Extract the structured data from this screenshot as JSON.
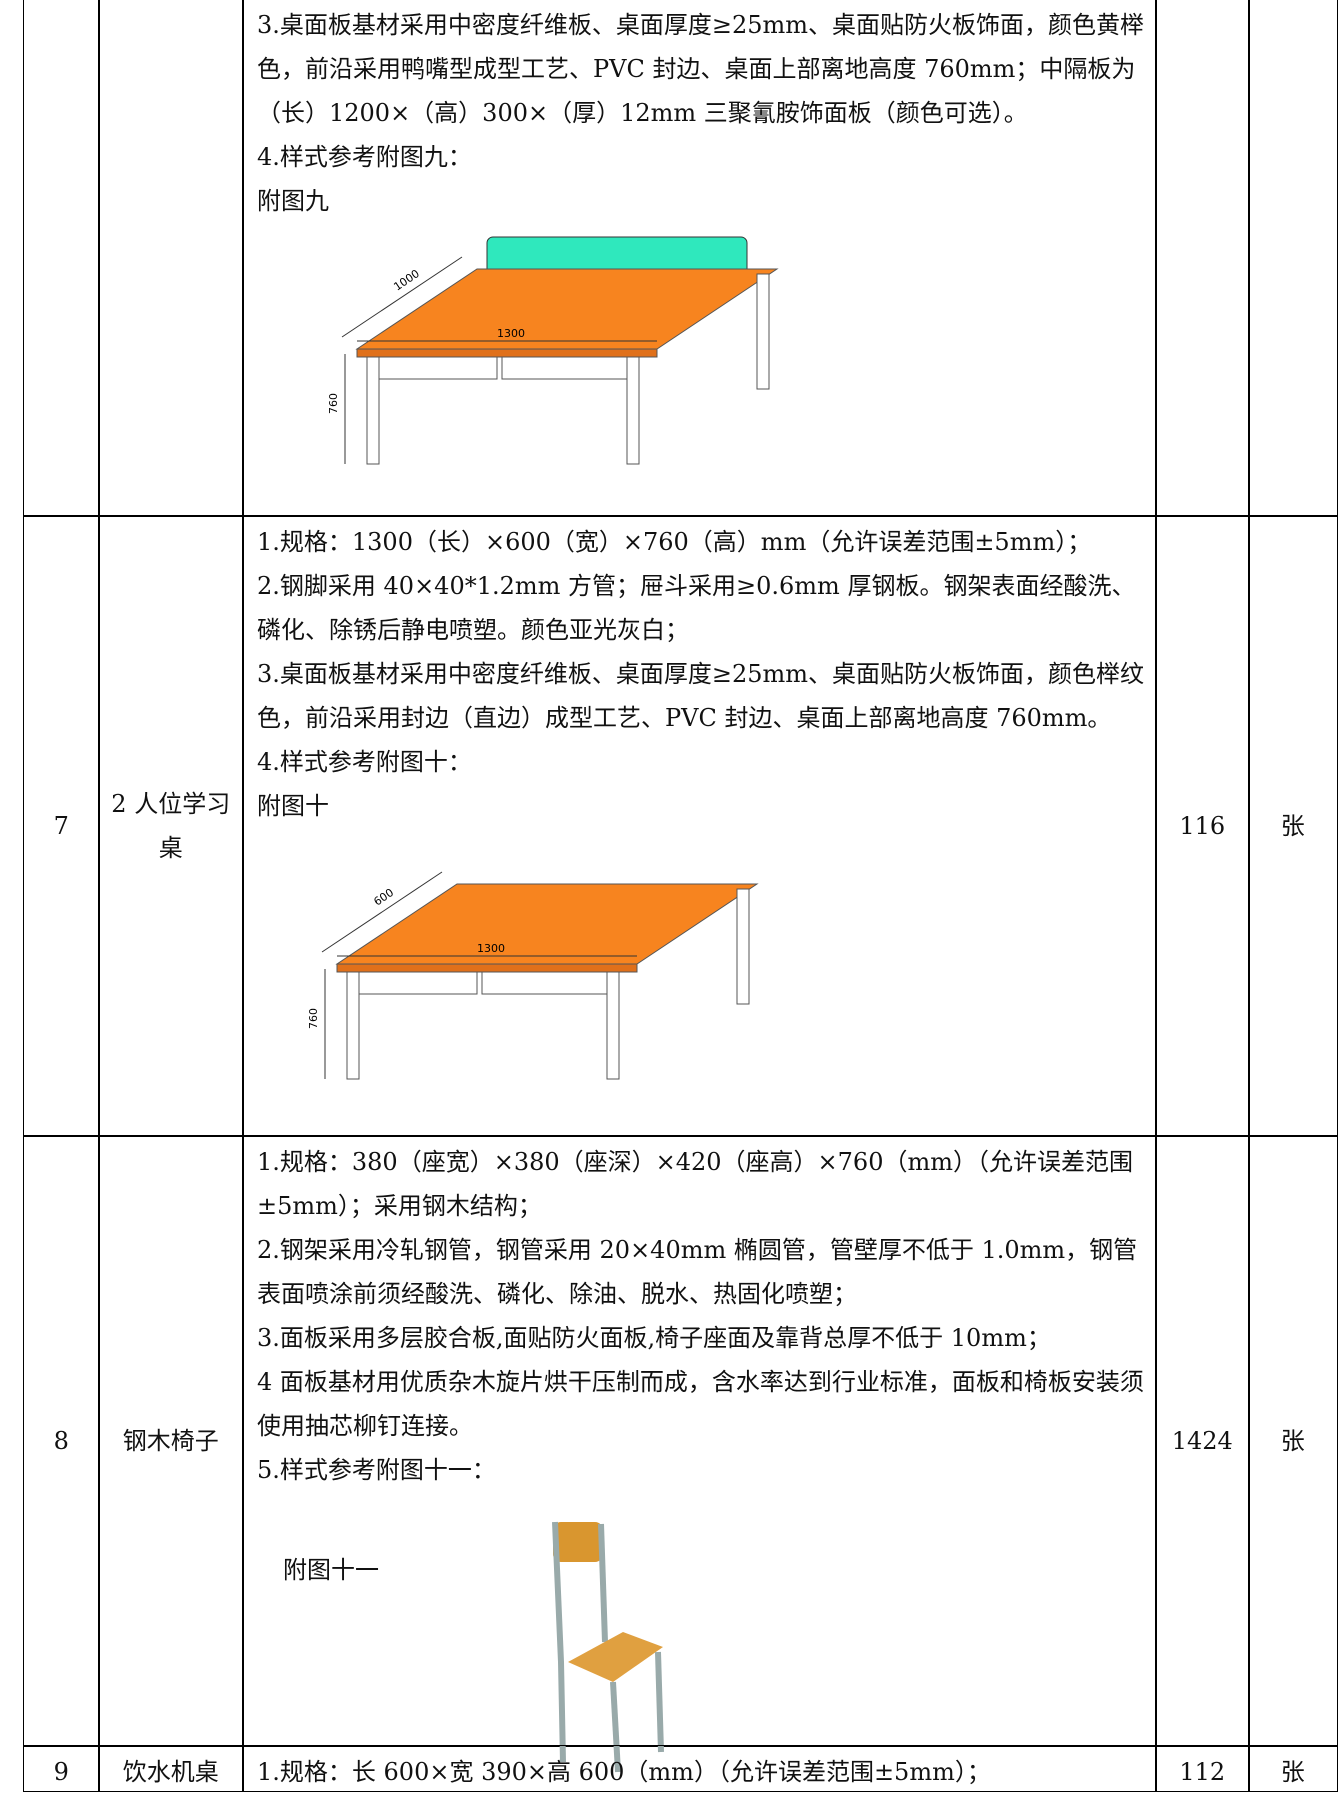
{
  "table": {
    "rows": [
      {
        "specs": [
          "3.桌面板基材采用中密度纤维板、桌面厚度≥25mm、桌面贴防火板饰面，颜色黄榉色，前沿采用鸭嘴型成型工艺、PVC 封边、桌面上部离地高度 760mm；中隔板为（长）1200×（高）300×（厚）12mm 三聚氰胺饰面板（颜色可选）。",
          "4.样式参考附图九："
        ],
        "figure": {
          "caption": "附图九",
          "dims": [
            "1000",
            "1300",
            "760"
          ]
        }
      },
      {
        "no": "7",
        "name": "2 人位学习桌",
        "specs": [
          "1.规格：1300（长）×600（宽）×760（高）mm（允许误差范围±5mm）；",
          "2.钢脚采用 40×40*1.2mm 方管；屉斗采用≥0.6mm 厚钢板。钢架表面经酸洗、磷化、除锈后静电喷塑。颜色亚光灰白；",
          "3.桌面板基材采用中密度纤维板、桌面厚度≥25mm、桌面贴防火板饰面，颜色榉纹色，前沿采用封边（直边）成型工艺、PVC 封边、桌面上部离地高度 760mm。",
          "4.样式参考附图十："
        ],
        "figure": {
          "caption": "附图十",
          "dims": [
            "600",
            "1300",
            "760"
          ]
        },
        "qty": "116",
        "unit": "张"
      },
      {
        "no": "8",
        "name": "钢木椅子",
        "specs": [
          "1.规格：380（座宽）×380（座深）×420（座高）×760（mm）（允许误差范围±5mm）；采用钢木结构；",
          "2.钢架采用冷轧钢管，钢管采用 20×40mm 椭圆管，管壁厚不低于 1.0mm，钢管表面喷涂前须经酸洗、磷化、除油、脱水、热固化喷塑；",
          "3.面板采用多层胶合板,面贴防火面板,椅子座面及靠背总厚不低于 10mm；",
          "4 面板基材用优质杂木旋片烘干压制而成，含水率达到行业标准，面板和椅板安装须使用抽芯柳钉连接。",
          "5.样式参考附图十一："
        ],
        "figure": {
          "caption": "附图十一"
        },
        "qty": "1424",
        "unit": "张"
      },
      {
        "no": "9",
        "name": "饮水机桌",
        "specs": [
          "1.规格：长 600×宽 390×高 600（mm）（允许误差范围±5mm）；"
        ],
        "qty": "112",
        "unit": "张"
      }
    ]
  }
}
